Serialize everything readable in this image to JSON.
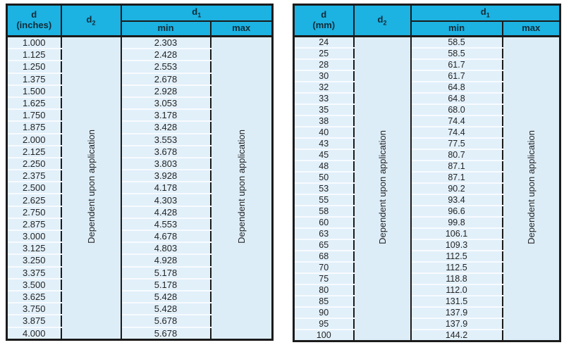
{
  "colors": {
    "header_bg": "#1cb2e2",
    "row_bg": "#e2f0fa",
    "merged_bg": "#ddedf8",
    "border": "#1b1b1b",
    "row_separator": "#f8fbfe",
    "text": "#242424"
  },
  "tables": [
    {
      "name": "inches",
      "header": {
        "d_line1": "d",
        "d_line2": "(inches)",
        "d2_base": "d",
        "d2_sub": "2",
        "d1_base": "d",
        "d1_sub": "1",
        "min": "min",
        "max": "max"
      },
      "d2_text": "Dependent upon application",
      "max_text": "Dependent upon application",
      "rows": [
        {
          "d": "1.000",
          "min": "2.303"
        },
        {
          "d": "1.125",
          "min": "2.428"
        },
        {
          "d": "1.250",
          "min": "2.553"
        },
        {
          "d": "1.375",
          "min": "2.678"
        },
        {
          "d": "1.500",
          "min": "2.928"
        },
        {
          "d": "1.625",
          "min": "3.053"
        },
        {
          "d": "1.750",
          "min": "3.178"
        },
        {
          "d": "1.875",
          "min": "3.428"
        },
        {
          "d": "2.000",
          "min": "3.553"
        },
        {
          "d": "2.125",
          "min": "3.678"
        },
        {
          "d": "2.250",
          "min": "3.803"
        },
        {
          "d": "2.375",
          "min": "3.928"
        },
        {
          "d": "2.500",
          "min": "4.178"
        },
        {
          "d": "2.625",
          "min": "4.303"
        },
        {
          "d": "2.750",
          "min": "4.428"
        },
        {
          "d": "2.875",
          "min": "4.553"
        },
        {
          "d": "3.000",
          "min": "4.678"
        },
        {
          "d": "3.125",
          "min": "4.803"
        },
        {
          "d": "3.250",
          "min": "4.928"
        },
        {
          "d": "3.375",
          "min": "5.178"
        },
        {
          "d": "3.500",
          "min": "5.178"
        },
        {
          "d": "3.625",
          "min": "5.428"
        },
        {
          "d": "3.750",
          "min": "5.428"
        },
        {
          "d": "3.875",
          "min": "5.678"
        },
        {
          "d": "4.000",
          "min": "5.678"
        }
      ]
    },
    {
      "name": "mm",
      "header": {
        "d_line1": "d",
        "d_line2": "(mm)",
        "d2_base": "d",
        "d2_sub": "2",
        "d1_base": "d",
        "d1_sub": "1",
        "min": "min",
        "max": "max"
      },
      "d2_text": "Dependent upon application",
      "max_text": "Dependent upon application",
      "rows": [
        {
          "d": "24",
          "min": "58.5"
        },
        {
          "d": "25",
          "min": "58.5"
        },
        {
          "d": "28",
          "min": "61.7"
        },
        {
          "d": "30",
          "min": "61.7"
        },
        {
          "d": "32",
          "min": "64.8"
        },
        {
          "d": "33",
          "min": "64.8"
        },
        {
          "d": "35",
          "min": "68.0"
        },
        {
          "d": "38",
          "min": "74.4"
        },
        {
          "d": "40",
          "min": "74.4"
        },
        {
          "d": "43",
          "min": "77.5"
        },
        {
          "d": "45",
          "min": "80.7"
        },
        {
          "d": "48",
          "min": "87.1"
        },
        {
          "d": "50",
          "min": "87.1"
        },
        {
          "d": "53",
          "min": "90.2"
        },
        {
          "d": "55",
          "min": "93.4"
        },
        {
          "d": "58",
          "min": "96.6"
        },
        {
          "d": "60",
          "min": "99.8"
        },
        {
          "d": "63",
          "min": "106.1"
        },
        {
          "d": "65",
          "min": "109.3"
        },
        {
          "d": "68",
          "min": "112.5"
        },
        {
          "d": "70",
          "min": "112.5"
        },
        {
          "d": "75",
          "min": "118.8"
        },
        {
          "d": "80",
          "min": "112.0"
        },
        {
          "d": "85",
          "min": "131.5"
        },
        {
          "d": "90",
          "min": "137.9"
        },
        {
          "d": "95",
          "min": "137.9"
        },
        {
          "d": "100",
          "min": "144.2"
        }
      ]
    }
  ]
}
